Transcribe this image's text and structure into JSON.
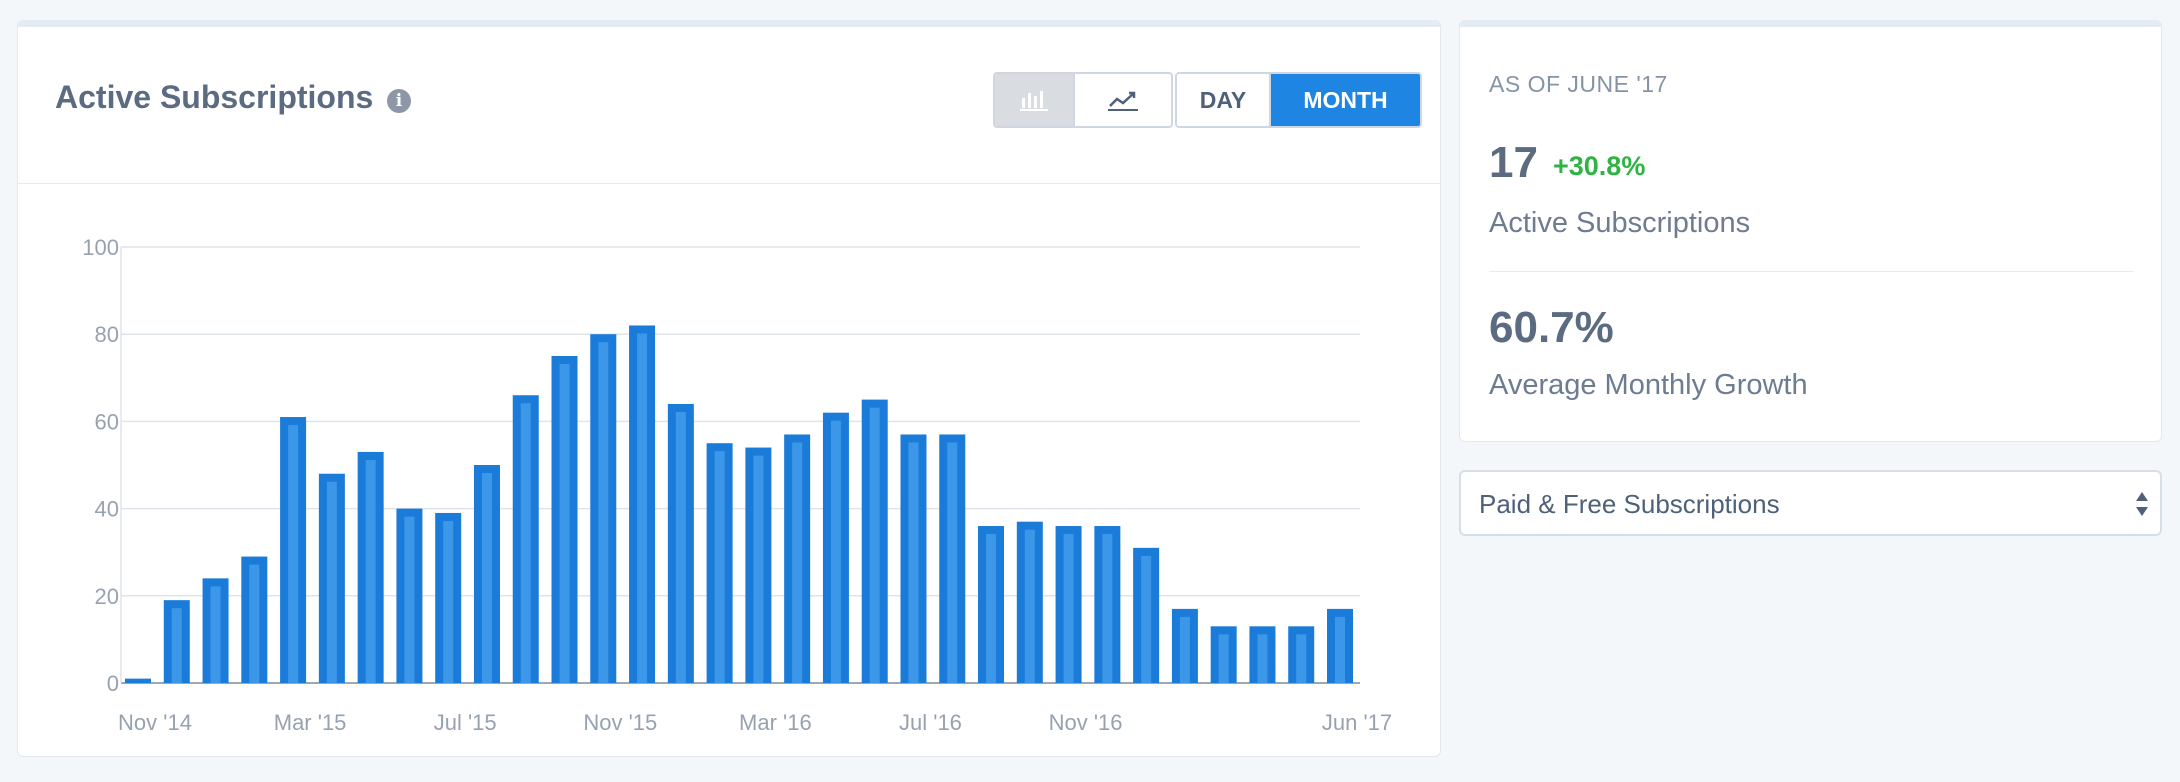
{
  "header": {
    "title": "Active Subscriptions",
    "info_icon": "info-icon",
    "chart_type_buttons": [
      "bar-chart-icon",
      "line-chart-icon"
    ],
    "period": {
      "day_label": "DAY",
      "month_label": "MONTH",
      "selected": "MONTH"
    },
    "accent": "#1e86e2"
  },
  "stats": {
    "as_of": "AS OF JUNE '17",
    "active_count": "17",
    "active_change": "+30.8%",
    "active_label": "Active Subscriptions",
    "avg_growth": "60.7%",
    "avg_growth_label": "Average Monthly Growth",
    "positive_color": "#2fb344"
  },
  "filter": {
    "selected": "Paid & Free Subscriptions"
  },
  "chart_data": {
    "type": "bar",
    "categories": [
      "Nov '14",
      "Dec '14",
      "Jan '15",
      "Feb '15",
      "Mar '15",
      "Apr '15",
      "May '15",
      "Jun '15",
      "Jul '15",
      "Aug '15",
      "Sep '15",
      "Oct '15",
      "Nov '15",
      "Dec '15",
      "Jan '16",
      "Feb '16",
      "Mar '16",
      "Apr '16",
      "May '16",
      "Jun '16",
      "Jul '16",
      "Aug '16",
      "Sep '16",
      "Oct '16",
      "Nov '16",
      "Dec '16",
      "Jan '17",
      "Feb '17",
      "Mar '17",
      "Apr '17",
      "May '17",
      "Jun '17"
    ],
    "values": [
      1,
      19,
      24,
      29,
      61,
      48,
      53,
      40,
      39,
      50,
      66,
      75,
      80,
      82,
      64,
      55,
      54,
      57,
      62,
      65,
      57,
      57,
      36,
      37,
      36,
      36,
      31,
      17,
      13,
      13,
      13,
      17
    ],
    "x_tick_labels": [
      "Nov '14",
      "Mar '15",
      "Jul '15",
      "Nov '15",
      "Mar '16",
      "Jul '16",
      "Nov '16",
      "Jun '17"
    ],
    "y_ticks": [
      "0",
      "20",
      "40",
      "60",
      "80",
      "100"
    ],
    "ylim": [
      0,
      100
    ],
    "grid": true,
    "bar_color": "#1a7bd8",
    "bar_highlight": "#3d97e8"
  }
}
